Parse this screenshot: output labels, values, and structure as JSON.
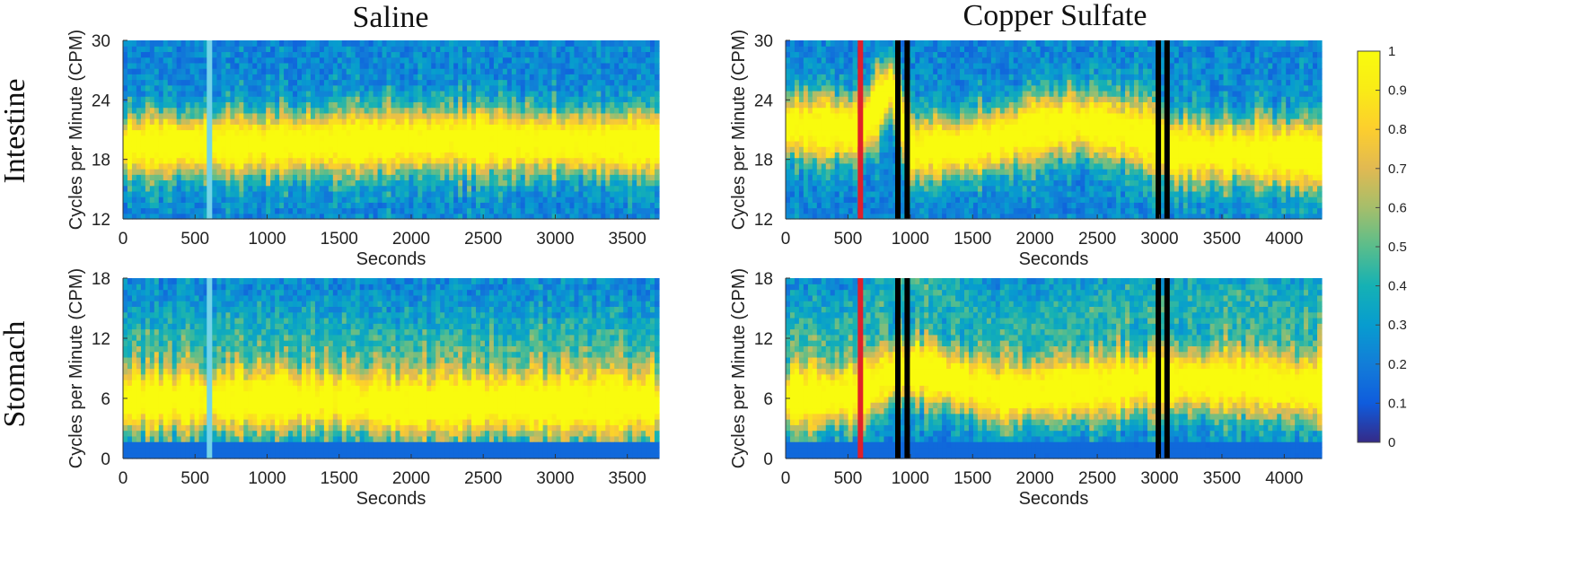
{
  "chart_data": {
    "type": "heatmap",
    "colormap": "parula",
    "colorbar": {
      "min": 0,
      "max": 1,
      "ticks": [
        "0",
        "0.1",
        "0.2",
        "0.3",
        "0.4",
        "0.5",
        "0.6",
        "0.7",
        "0.8",
        "0.9",
        "1"
      ]
    },
    "column_titles": [
      "Saline",
      "Copper Sulfate"
    ],
    "row_labels": [
      "Intestine",
      "Stomach"
    ],
    "panels": [
      {
        "id": "saline-intestine",
        "condition": "Saline",
        "organ": "Intestine",
        "xlabel": "Seconds",
        "ylabel": "Cycles per Minute (CPM)",
        "xlim": [
          0,
          3720
        ],
        "ylim": [
          12,
          30
        ],
        "xticks": [
          "0",
          "500",
          "1000",
          "1500",
          "2000",
          "2500",
          "3000",
          "3500"
        ],
        "yticks": [
          "12",
          "18",
          "24",
          "30"
        ],
        "dominant_band_cpm": [
          [
            0,
            19.5
          ],
          [
            1000,
            19.5
          ],
          [
            2000,
            20.0
          ],
          [
            3000,
            19.8
          ],
          [
            3720,
            19.5
          ]
        ],
        "markers": [
          {
            "x": 600,
            "color": "#72d3e8"
          }
        ]
      },
      {
        "id": "saline-stomach",
        "condition": "Saline",
        "organ": "Stomach",
        "xlabel": "Seconds",
        "ylabel": "Cycles per Minute (CPM)",
        "xlim": [
          0,
          3720
        ],
        "ylim": [
          0,
          18
        ],
        "xticks": [
          "0",
          "500",
          "1000",
          "1500",
          "2000",
          "2500",
          "3000",
          "3500"
        ],
        "yticks": [
          "0",
          "6",
          "12",
          "18"
        ],
        "dominant_band_cpm": [
          [
            0,
            5.8
          ],
          [
            800,
            5.8
          ],
          [
            1600,
            5.8
          ],
          [
            1900,
            5.3
          ],
          [
            2400,
            5.5
          ],
          [
            3720,
            5.5
          ]
        ],
        "markers": [
          {
            "x": 600,
            "color": "#72d3e8"
          }
        ]
      },
      {
        "id": "copper-intestine",
        "condition": "Copper Sulfate",
        "organ": "Intestine",
        "xlabel": "Seconds",
        "ylabel": "Cycles per Minute (CPM)",
        "xlim": [
          0,
          4300
        ],
        "ylim": [
          12,
          30
        ],
        "xticks": [
          "0",
          "500",
          "1000",
          "1500",
          "2000",
          "2500",
          "3000",
          "3500",
          "4000"
        ],
        "yticks": [
          "12",
          "18",
          "24",
          "30"
        ],
        "dominant_band_cpm": [
          [
            0,
            21.5
          ],
          [
            600,
            21.0
          ],
          [
            850,
            25.5
          ],
          [
            1000,
            19.0
          ],
          [
            1500,
            19.5
          ],
          [
            2300,
            21.8
          ],
          [
            2900,
            20.5
          ],
          [
            3100,
            19.0
          ],
          [
            4300,
            18.5
          ]
        ],
        "markers": [
          {
            "x": 600,
            "color": "#e0202a"
          },
          {
            "x": 900,
            "color": "#000000"
          },
          {
            "x": 975,
            "color": "#000000"
          },
          {
            "x": 2990,
            "color": "#000000"
          },
          {
            "x": 3060,
            "color": "#000000"
          }
        ]
      },
      {
        "id": "copper-stomach",
        "condition": "Copper Sulfate",
        "organ": "Stomach",
        "xlabel": "Seconds",
        "ylabel": "Cycles per Minute (CPM)",
        "xlim": [
          0,
          4300
        ],
        "ylim": [
          0,
          18
        ],
        "xticks": [
          "0",
          "500",
          "1000",
          "1500",
          "2000",
          "2500",
          "3000",
          "3500",
          "4000"
        ],
        "yticks": [
          "0",
          "6",
          "12",
          "18"
        ],
        "dominant_band_cpm": [
          [
            0,
            6.0
          ],
          [
            600,
            6.5
          ],
          [
            900,
            9.0
          ],
          [
            1200,
            8.5
          ],
          [
            1700,
            6.5
          ],
          [
            2500,
            7.2
          ],
          [
            3000,
            7.8
          ],
          [
            3500,
            7.8
          ],
          [
            4300,
            7.0
          ]
        ],
        "markers": [
          {
            "x": 600,
            "color": "#e0202a"
          },
          {
            "x": 900,
            "color": "#000000"
          },
          {
            "x": 975,
            "color": "#000000"
          },
          {
            "x": 2990,
            "color": "#000000"
          },
          {
            "x": 3060,
            "color": "#000000"
          }
        ]
      }
    ]
  }
}
